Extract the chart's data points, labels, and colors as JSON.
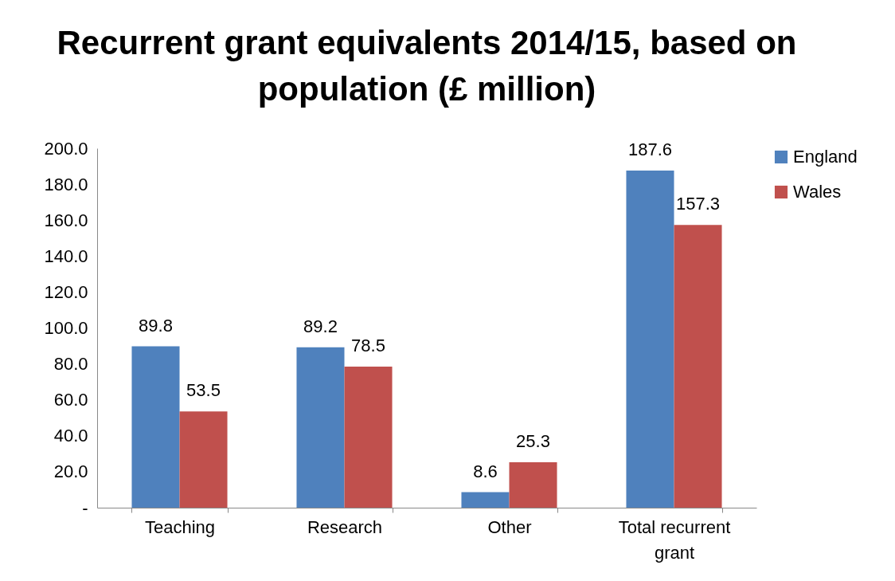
{
  "chart_data": {
    "type": "bar",
    "title": "Recurrent grant equivalents 2014/15, based on population (£ million)",
    "categories": [
      "Teaching",
      "Research",
      "Other",
      "Total recurrent grant"
    ],
    "series": [
      {
        "name": "England",
        "color": "#4f81bd",
        "values": [
          89.8,
          89.2,
          8.6,
          187.6
        ]
      },
      {
        "name": "Wales",
        "color": "#c0504d",
        "values": [
          53.5,
          78.5,
          25.3,
          157.3
        ]
      }
    ],
    "ylim": [
      0,
      200
    ],
    "yticks": [
      {
        "value": 0,
        "label": "-"
      },
      {
        "value": 20,
        "label": "20.0"
      },
      {
        "value": 40,
        "label": "40.0"
      },
      {
        "value": 60,
        "label": "60.0"
      },
      {
        "value": 80,
        "label": "80.0"
      },
      {
        "value": 100,
        "label": "100.0"
      },
      {
        "value": 120,
        "label": "120.0"
      },
      {
        "value": 140,
        "label": "140.0"
      },
      {
        "value": 160,
        "label": "160.0"
      },
      {
        "value": 180,
        "label": "180.0"
      },
      {
        "value": 200,
        "label": "200.0"
      }
    ],
    "data_labels": true,
    "legend": "right",
    "grid": false
  }
}
